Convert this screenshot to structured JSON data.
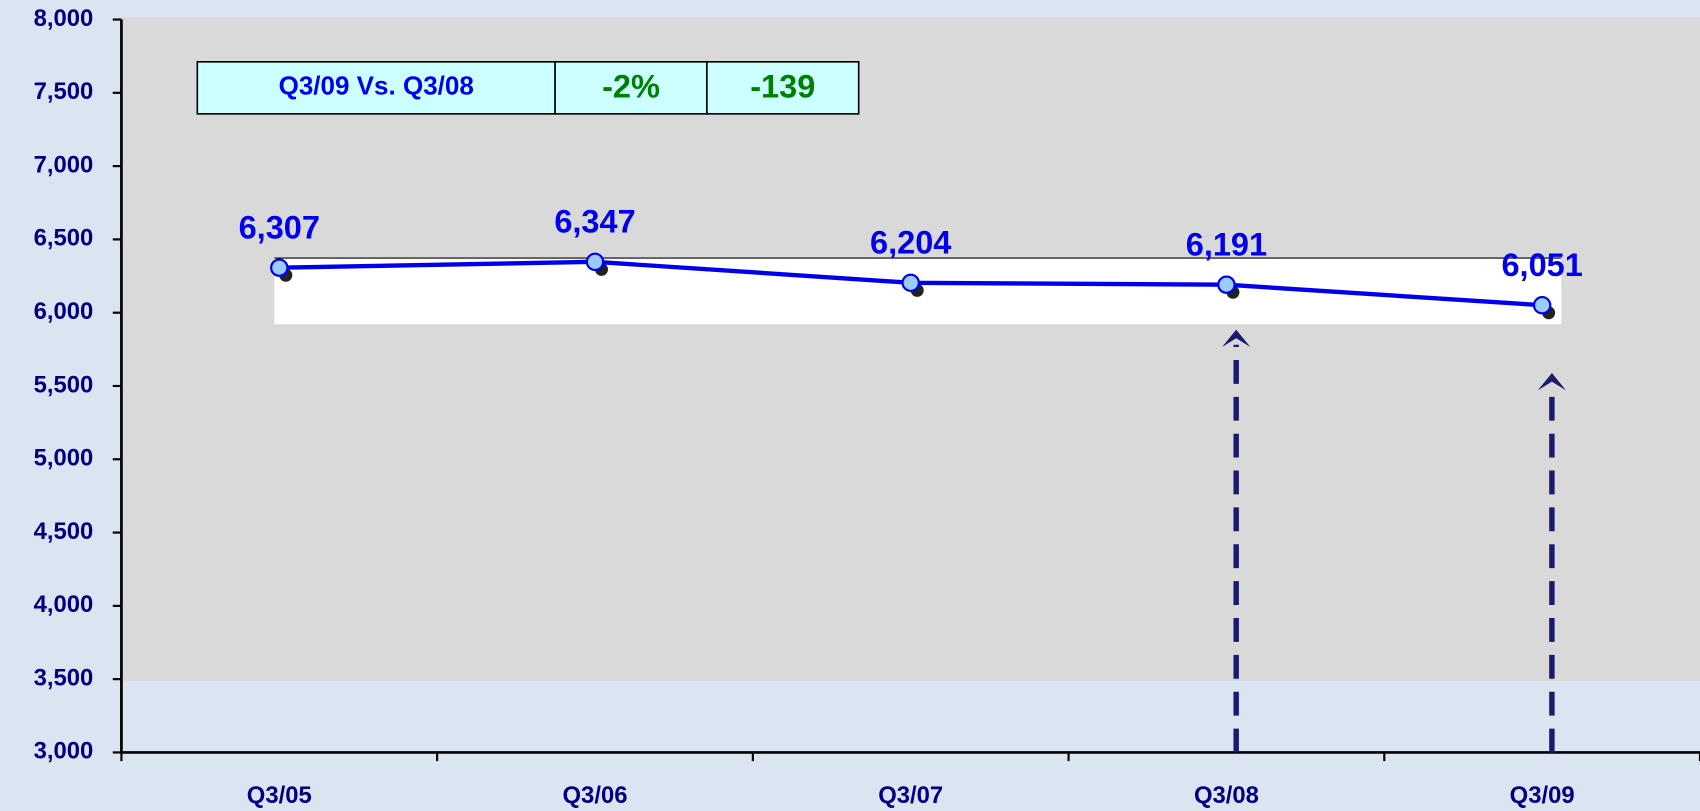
{
  "chart_data": {
    "type": "line",
    "categories": [
      "Q3/05",
      "Q3/06",
      "Q3/07",
      "Q3/08",
      "Q3/09"
    ],
    "series": [
      {
        "color": "#0000ee",
        "values": [
          6307,
          6347,
          6204,
          6191,
          6051
        ],
        "value_labels": [
          "6,307",
          "6,347",
          "6,204",
          "6,191",
          "6,051"
        ]
      }
    ],
    "ylim": [
      3000,
      8000
    ],
    "yticks": [
      {
        "value": 3000,
        "label": "3,000"
      },
      {
        "value": 3500,
        "label": "3,500"
      },
      {
        "value": 4000,
        "label": "4,000"
      },
      {
        "value": 4500,
        "label": "4,500"
      },
      {
        "value": 5000,
        "label": "5,000"
      },
      {
        "value": 5500,
        "label": "5,500"
      },
      {
        "value": 6000,
        "label": "6,000"
      },
      {
        "value": 6500,
        "label": "6,500"
      },
      {
        "value": 7000,
        "label": "7,000"
      },
      {
        "value": 7500,
        "label": "7,500"
      },
      {
        "value": 8000,
        "label": "8,000"
      }
    ],
    "annotation": {
      "label": "Q3/09 Vs. Q3/08",
      "change_pct": "-2%",
      "change": "-139"
    }
  }
}
